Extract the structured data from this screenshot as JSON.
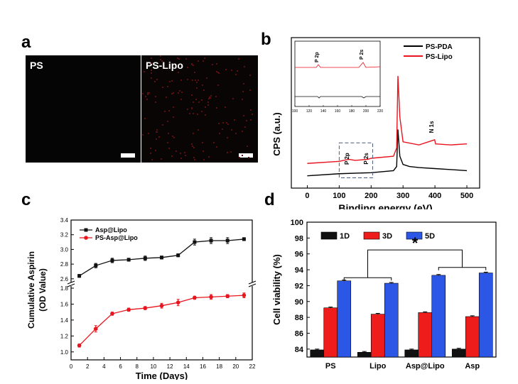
{
  "panels": {
    "a": {
      "letter": "a",
      "images": [
        {
          "label": "PS"
        },
        {
          "label": "PS-Lipo"
        }
      ]
    },
    "b": {
      "letter": "b"
    },
    "c": {
      "letter": "c"
    },
    "d": {
      "letter": "d"
    }
  },
  "chart_data": [
    {
      "id": "b",
      "type": "line",
      "xlabel": "Binding energy (eV)",
      "ylabel": "CPS (a.u.)",
      "xlim": [
        -50,
        540
      ],
      "xticks": [
        0,
        100,
        200,
        300,
        400,
        500
      ],
      "legend": "top-right",
      "series": [
        {
          "name": "PS-PDA",
          "color": "#000000",
          "x": [
            0,
            100,
            200,
            270,
            280,
            284,
            290,
            300,
            320,
            350,
            400,
            450,
            500
          ],
          "y": [
            3,
            5,
            6,
            8,
            12,
            48,
            22,
            14,
            12,
            11,
            10,
            9,
            8
          ]
        },
        {
          "name": "PS-Lipo",
          "color": "#e8141e",
          "x": [
            0,
            100,
            130,
            150,
            190,
            200,
            270,
            280,
            284,
            290,
            300,
            350,
            399,
            402,
            450,
            500
          ],
          "y": [
            15,
            17,
            19,
            18,
            19,
            20,
            22,
            30,
            100,
            60,
            36,
            33,
            38,
            34,
            33,
            34
          ]
        }
      ],
      "annotations": [
        "P 2p",
        "P 2s",
        "N 1s"
      ],
      "inset": {
        "xticks": [
          100,
          120,
          140,
          160,
          180,
          200,
          220
        ],
        "labels": [
          "P 2p",
          "P 2s"
        ]
      }
    },
    {
      "id": "c",
      "type": "line",
      "xlabel": "Time (Days)",
      "ylabel": "Cumulative Aspirin",
      "ylabel2": "(OD Value)",
      "xlim": [
        0,
        22
      ],
      "xticks": [
        0,
        2,
        4,
        6,
        8,
        10,
        12,
        14,
        16,
        18,
        20,
        22
      ],
      "y_broken_axis": true,
      "ylim_lower": [
        0.9,
        1.8
      ],
      "ylim_upper": [
        2.55,
        3.4
      ],
      "yticks": [
        1.0,
        1.2,
        1.4,
        1.6,
        1.8,
        2.6,
        2.8,
        3.0,
        3.2,
        3.4
      ],
      "legend": "top-left",
      "series": [
        {
          "name": "Asp@Lipo",
          "color": "#111111",
          "x": [
            1,
            3,
            5,
            7,
            9,
            11,
            13,
            15,
            17,
            19,
            21
          ],
          "y": [
            2.64,
            2.78,
            2.85,
            2.86,
            2.88,
            2.89,
            2.92,
            3.1,
            3.12,
            3.12,
            3.14
          ],
          "err": [
            0.02,
            0.03,
            0.03,
            0.02,
            0.03,
            0.02,
            0.02,
            0.04,
            0.04,
            0.04,
            0.02
          ]
        },
        {
          "name": "PS-Asp@Lipo",
          "color": "#e8141e",
          "x": [
            1,
            3,
            5,
            7,
            9,
            11,
            13,
            15,
            17,
            19,
            21
          ],
          "y": [
            1.08,
            1.29,
            1.48,
            1.53,
            1.55,
            1.58,
            1.62,
            1.68,
            1.69,
            1.7,
            1.71
          ],
          "err": [
            0.02,
            0.04,
            0.02,
            0.02,
            0.02,
            0.03,
            0.04,
            0.02,
            0.03,
            0.02,
            0.03
          ]
        }
      ]
    },
    {
      "id": "d",
      "type": "bar",
      "ylabel": "Cell viability (%)",
      "ylim": [
        83,
        100
      ],
      "yticks": [
        84,
        86,
        88,
        90,
        92,
        94,
        96,
        98,
        100
      ],
      "categories": [
        "PS",
        "Lipo",
        "Asp@Lipo",
        "Asp"
      ],
      "legend": "top",
      "series": [
        {
          "name": "1D",
          "color": "#111111",
          "values": [
            83.9,
            83.6,
            83.9,
            84.0
          ],
          "err": [
            0.1,
            0.1,
            0.1,
            0.1
          ]
        },
        {
          "name": "3D",
          "color": "#ef1c1c",
          "values": [
            89.2,
            88.4,
            88.6,
            88.1
          ],
          "err": [
            0.1,
            0.1,
            0.1,
            0.1
          ]
        },
        {
          "name": "5D",
          "color": "#2c56e6",
          "values": [
            92.6,
            92.3,
            93.3,
            93.6
          ],
          "err": [
            0.1,
            0.1,
            0.1,
            0.1
          ]
        }
      ],
      "annotations": [
        "*"
      ]
    }
  ]
}
